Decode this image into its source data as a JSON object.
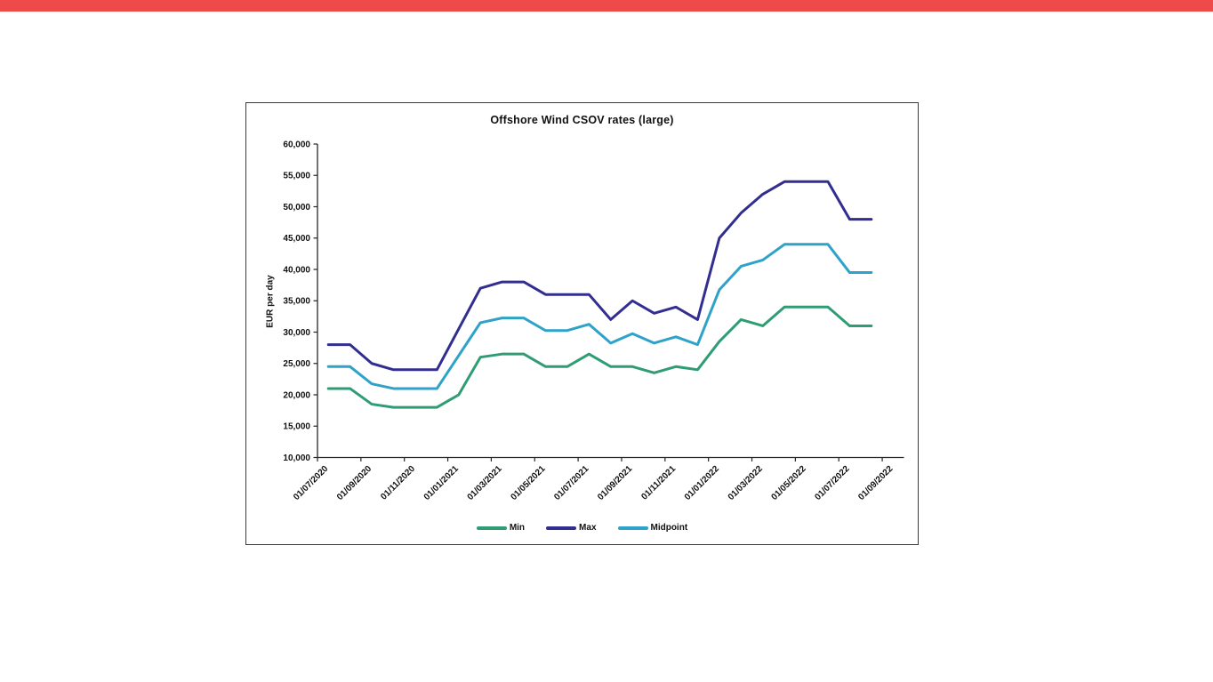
{
  "page": {
    "top_bar_color": "#ee4a4a",
    "background": "#ffffff"
  },
  "chart_data": {
    "type": "line",
    "title": "Offshore Wind CSOV rates (large)",
    "xlabel": "",
    "ylabel": "EUR per day",
    "ylim": [
      10000,
      60000
    ],
    "y_tick_step": 5000,
    "y_tick_labels": [
      "10,000",
      "15,000",
      "20,000",
      "25,000",
      "30,000",
      "35,000",
      "40,000",
      "45,000",
      "50,000",
      "55,000",
      "60,000"
    ],
    "x": [
      "01/07/2020",
      "01/08/2020",
      "01/09/2020",
      "01/10/2020",
      "01/11/2020",
      "01/12/2020",
      "01/01/2021",
      "01/02/2021",
      "01/03/2021",
      "01/04/2021",
      "01/05/2021",
      "01/06/2021",
      "01/07/2021",
      "01/08/2021",
      "01/09/2021",
      "01/10/2021",
      "01/11/2021",
      "01/12/2021",
      "01/01/2022",
      "01/02/2022",
      "01/03/2022",
      "01/04/2022",
      "01/05/2022",
      "01/06/2022",
      "01/07/2022",
      "01/08/2022"
    ],
    "x_tick_labels": [
      "01/07/2020",
      "01/09/2020",
      "01/11/2020",
      "01/01/2021",
      "01/03/2021",
      "01/05/2021",
      "01/07/2021",
      "01/09/2021",
      "01/11/2021",
      "01/01/2022",
      "01/03/2022",
      "01/05/2022",
      "01/07/2022",
      "01/09/2022"
    ],
    "x_slots": 27,
    "grid": false,
    "legend_position": "bottom",
    "series": [
      {
        "name": "Min",
        "color": "#2f9c74",
        "values": [
          21000,
          21000,
          18500,
          18000,
          18000,
          18000,
          20000,
          26000,
          26500,
          26500,
          24500,
          24500,
          26500,
          24500,
          24500,
          23500,
          24500,
          24000,
          28500,
          32000,
          31000,
          34000,
          34000,
          34000,
          31000,
          31000
        ]
      },
      {
        "name": "Max",
        "color": "#322e8f",
        "values": [
          28000,
          28000,
          25000,
          24000,
          24000,
          24000,
          30500,
          37000,
          38000,
          38000,
          36000,
          36000,
          36000,
          32000,
          35000,
          33000,
          34000,
          32000,
          45000,
          49000,
          52000,
          54000,
          54000,
          54000,
          48000,
          48000
        ]
      },
      {
        "name": "Midpoint",
        "color": "#2ea2c8",
        "values": [
          24500,
          24500,
          21750,
          21000,
          21000,
          21000,
          26250,
          31500,
          32250,
          32250,
          30250,
          30250,
          31250,
          28250,
          29750,
          28250,
          29250,
          28000,
          36750,
          40500,
          41500,
          44000,
          44000,
          44000,
          39500,
          39500
        ]
      }
    ]
  }
}
